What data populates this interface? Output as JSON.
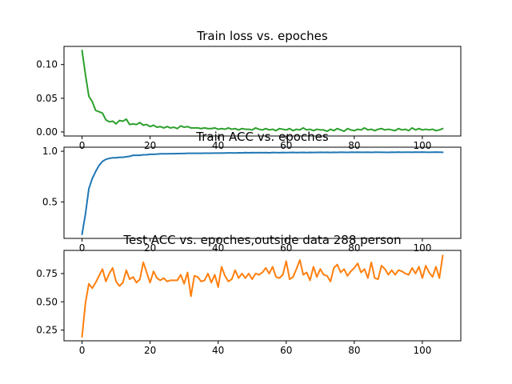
{
  "chart_data": [
    {
      "type": "line",
      "title": "Train loss vs. epoches",
      "xlim": [
        -5.3,
        111.3
      ],
      "ylim": [
        -0.006,
        0.127
      ],
      "xticks": [
        0,
        20,
        40,
        60,
        80,
        100
      ],
      "yticks": [
        0.0,
        0.05,
        0.1
      ],
      "ytick_labels": [
        "0.00",
        "0.05",
        "0.10"
      ],
      "series": [
        {
          "color": "#2ca02c",
          "x": [
            0,
            1,
            2,
            3,
            4,
            5,
            6,
            7,
            8,
            9,
            10,
            11,
            12,
            13,
            14,
            15,
            16,
            17,
            18,
            19,
            20,
            21,
            22,
            23,
            24,
            25,
            26,
            27,
            28,
            29,
            30,
            31,
            32,
            33,
            34,
            35,
            36,
            37,
            38,
            39,
            40,
            41,
            42,
            43,
            44,
            45,
            46,
            47,
            48,
            49,
            50,
            51,
            52,
            53,
            54,
            55,
            56,
            57,
            58,
            59,
            60,
            61,
            62,
            63,
            64,
            65,
            66,
            67,
            68,
            69,
            70,
            71,
            72,
            73,
            74,
            75,
            76,
            77,
            78,
            79,
            80,
            81,
            82,
            83,
            84,
            85,
            86,
            87,
            88,
            89,
            90,
            91,
            92,
            93,
            94,
            95,
            96,
            97,
            98,
            99,
            100,
            101,
            102,
            103,
            104,
            105,
            106
          ],
          "y": [
            0.121,
            0.085,
            0.053,
            0.045,
            0.032,
            0.03,
            0.028,
            0.018,
            0.015,
            0.016,
            0.012,
            0.017,
            0.016,
            0.019,
            0.011,
            0.012,
            0.011,
            0.014,
            0.01,
            0.011,
            0.008,
            0.01,
            0.007,
            0.008,
            0.006,
            0.008,
            0.006,
            0.007,
            0.005,
            0.009,
            0.007,
            0.008,
            0.006,
            0.006,
            0.006,
            0.005,
            0.006,
            0.005,
            0.005,
            0.006,
            0.004,
            0.005,
            0.004,
            0.006,
            0.004,
            0.005,
            0.003,
            0.005,
            0.004,
            0.004,
            0.003,
            0.006,
            0.004,
            0.003,
            0.005,
            0.003,
            0.004,
            0.002,
            0.005,
            0.004,
            0.003,
            0.005,
            0.002,
            0.004,
            0.003,
            0.006,
            0.003,
            0.004,
            0.002,
            0.004,
            0.003,
            0.003,
            0.001,
            0.004,
            0.002,
            0.005,
            0.003,
            0.001,
            0.005,
            0.003,
            0.002,
            0.004,
            0.003,
            0.006,
            0.003,
            0.004,
            0.002,
            0.004,
            0.005,
            0.003,
            0.004,
            0.003,
            0.002,
            0.005,
            0.003,
            0.004,
            0.002,
            0.006,
            0.003,
            0.005,
            0.003,
            0.004,
            0.003,
            0.004,
            0.002,
            0.003,
            0.005
          ]
        }
      ]
    },
    {
      "type": "line",
      "title": "Train ACC vs. epoches",
      "xlim": [
        -5.3,
        111.3
      ],
      "ylim": [
        0.14,
        1.04
      ],
      "xticks": [
        0,
        20,
        40,
        60,
        80,
        100
      ],
      "yticks": [
        0.5,
        1.0
      ],
      "ytick_labels": [
        "0.5",
        "1.0"
      ],
      "series": [
        {
          "color": "#1f77b4",
          "x": [
            0,
            1,
            2,
            3,
            4,
            5,
            6,
            7,
            8,
            9,
            10,
            11,
            12,
            13,
            14,
            15,
            16,
            17,
            18,
            19,
            20,
            21,
            22,
            23,
            24,
            25,
            26,
            27,
            28,
            29,
            30,
            31,
            32,
            33,
            34,
            35,
            36,
            37,
            38,
            39,
            40,
            41,
            42,
            43,
            44,
            45,
            46,
            47,
            48,
            49,
            50,
            51,
            52,
            53,
            54,
            55,
            56,
            57,
            58,
            59,
            60,
            61,
            62,
            63,
            64,
            65,
            66,
            67,
            68,
            69,
            70,
            71,
            72,
            73,
            74,
            75,
            76,
            77,
            78,
            79,
            80,
            81,
            82,
            83,
            84,
            85,
            86,
            87,
            88,
            89,
            90,
            91,
            92,
            93,
            94,
            95,
            96,
            97,
            98,
            99,
            100,
            101,
            102,
            103,
            104,
            105,
            106
          ],
          "y": [
            0.18,
            0.38,
            0.63,
            0.73,
            0.8,
            0.86,
            0.9,
            0.92,
            0.93,
            0.935,
            0.935,
            0.94,
            0.94,
            0.945,
            0.95,
            0.96,
            0.96,
            0.96,
            0.965,
            0.965,
            0.97,
            0.97,
            0.972,
            0.975,
            0.975,
            0.975,
            0.976,
            0.976,
            0.977,
            0.978,
            0.978,
            0.98,
            0.98,
            0.98,
            0.98,
            0.98,
            0.981,
            0.981,
            0.981,
            0.982,
            0.982,
            0.982,
            0.983,
            0.984,
            0.984,
            0.983,
            0.985,
            0.984,
            0.987,
            0.985,
            0.987,
            0.986,
            0.987,
            0.986,
            0.987,
            0.985,
            0.988,
            0.987,
            0.986,
            0.988,
            0.987,
            0.988,
            0.989,
            0.987,
            0.988,
            0.989,
            0.987,
            0.989,
            0.988,
            0.989,
            0.99,
            0.989,
            0.99,
            0.988,
            0.99,
            0.989,
            0.991,
            0.99,
            0.989,
            0.991,
            0.99,
            0.991,
            0.99,
            0.99,
            0.991,
            0.989,
            0.991,
            0.991,
            0.99,
            0.99,
            0.989,
            0.991,
            0.99,
            0.992,
            0.99,
            0.991,
            0.991,
            0.99,
            0.992,
            0.991,
            0.992,
            0.991,
            0.99,
            0.991,
            0.992,
            0.991,
            0.99
          ]
        }
      ]
    },
    {
      "type": "line",
      "title": "Test ACC vs. epoches,outside data 288 person",
      "xlim": [
        -5.3,
        111.3
      ],
      "ylim": [
        0.155,
        0.955
      ],
      "xticks": [
        0,
        20,
        40,
        60,
        80,
        100
      ],
      "yticks": [
        0.25,
        0.5,
        0.75
      ],
      "ytick_labels": [
        "0.25",
        "0.50",
        "0.75"
      ],
      "series": [
        {
          "color": "#ff7f0e",
          "x": [
            0,
            1,
            2,
            3,
            4,
            5,
            6,
            7,
            8,
            9,
            10,
            11,
            12,
            13,
            14,
            15,
            16,
            17,
            18,
            19,
            20,
            21,
            22,
            23,
            24,
            25,
            26,
            27,
            28,
            29,
            30,
            31,
            32,
            33,
            34,
            35,
            36,
            37,
            38,
            39,
            40,
            41,
            42,
            43,
            44,
            45,
            46,
            47,
            48,
            49,
            50,
            51,
            52,
            53,
            54,
            55,
            56,
            57,
            58,
            59,
            60,
            61,
            62,
            63,
            64,
            65,
            66,
            67,
            68,
            69,
            70,
            71,
            72,
            73,
            74,
            75,
            76,
            77,
            78,
            79,
            80,
            81,
            82,
            83,
            84,
            85,
            86,
            87,
            88,
            89,
            90,
            91,
            92,
            93,
            94,
            95,
            96,
            97,
            98,
            99,
            100,
            101,
            102,
            103,
            104,
            105,
            106
          ],
          "y": [
            0.19,
            0.49,
            0.66,
            0.62,
            0.67,
            0.73,
            0.79,
            0.68,
            0.75,
            0.8,
            0.68,
            0.64,
            0.67,
            0.78,
            0.7,
            0.72,
            0.67,
            0.7,
            0.85,
            0.76,
            0.67,
            0.77,
            0.71,
            0.69,
            0.71,
            0.68,
            0.69,
            0.69,
            0.69,
            0.74,
            0.66,
            0.76,
            0.55,
            0.73,
            0.72,
            0.68,
            0.69,
            0.75,
            0.67,
            0.74,
            0.63,
            0.81,
            0.73,
            0.68,
            0.7,
            0.78,
            0.71,
            0.75,
            0.71,
            0.75,
            0.7,
            0.75,
            0.74,
            0.76,
            0.8,
            0.75,
            0.81,
            0.72,
            0.71,
            0.74,
            0.86,
            0.7,
            0.72,
            0.79,
            0.87,
            0.74,
            0.76,
            0.69,
            0.81,
            0.72,
            0.79,
            0.74,
            0.73,
            0.68,
            0.8,
            0.83,
            0.76,
            0.79,
            0.73,
            0.77,
            0.8,
            0.84,
            0.76,
            0.79,
            0.71,
            0.85,
            0.71,
            0.7,
            0.82,
            0.79,
            0.74,
            0.78,
            0.74,
            0.78,
            0.77,
            0.75,
            0.74,
            0.8,
            0.75,
            0.81,
            0.71,
            0.82,
            0.76,
            0.72,
            0.81,
            0.71,
            0.91
          ]
        }
      ]
    }
  ]
}
